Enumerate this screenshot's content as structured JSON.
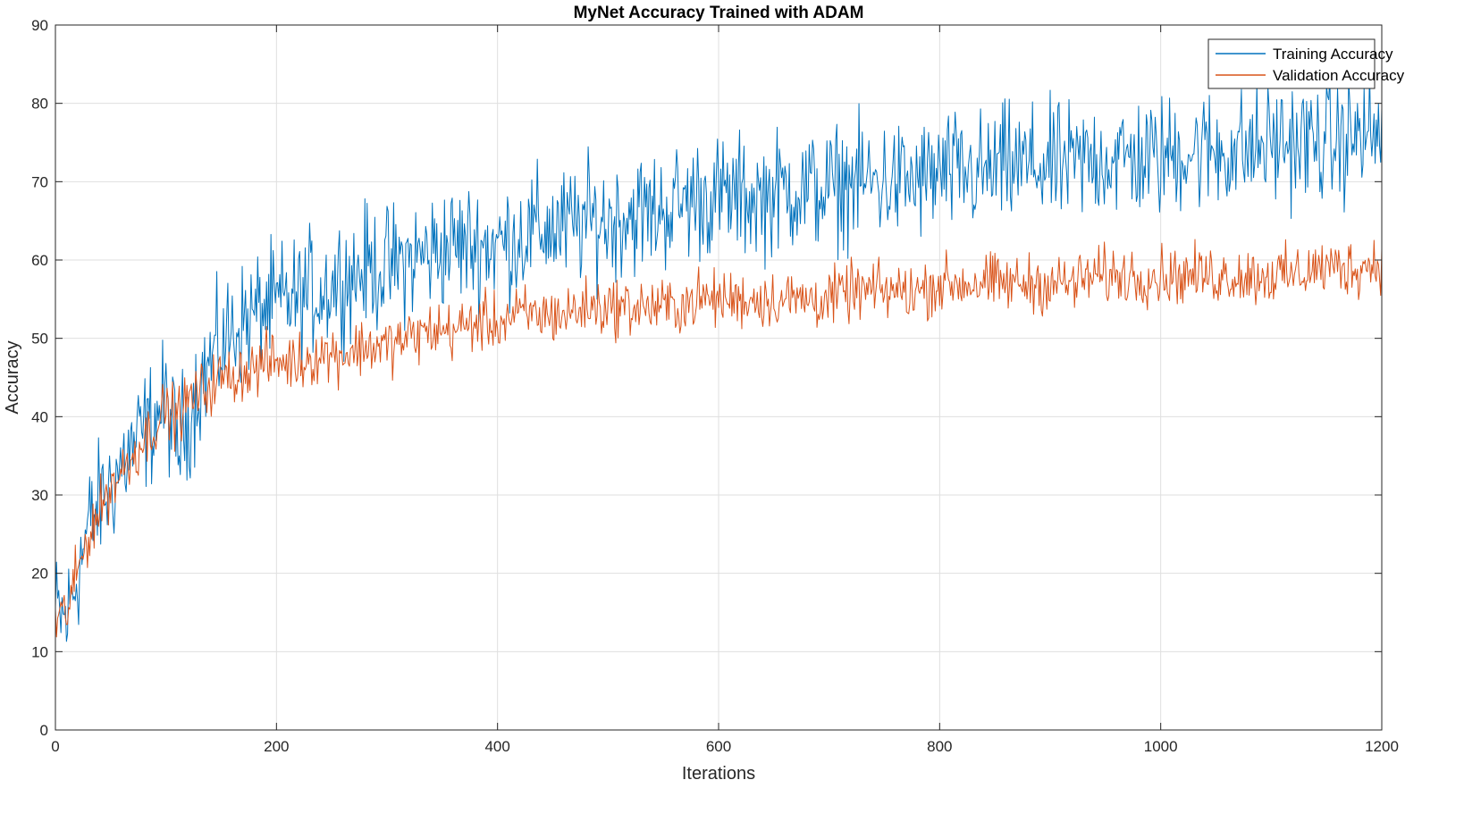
{
  "chart_data": {
    "type": "line",
    "title": "MyNet Accuracy Trained with ADAM",
    "xlabel": "Iterations",
    "ylabel": "Accuracy",
    "xlim": [
      0,
      1200
    ],
    "ylim": [
      0,
      90
    ],
    "xticks": [
      0,
      200,
      400,
      600,
      800,
      1000,
      1200
    ],
    "yticks": [
      0,
      10,
      20,
      30,
      40,
      50,
      60,
      70,
      80,
      90
    ],
    "grid": true,
    "legend_position": "top-right",
    "series": [
      {
        "name": "Training Accuracy",
        "color": "#0072BD",
        "x": [
          0,
          10,
          20,
          30,
          40,
          50,
          60,
          70,
          80,
          90,
          100,
          110,
          120,
          130,
          140,
          150,
          160,
          170,
          180,
          190,
          200,
          210,
          220,
          230,
          240,
          250,
          260,
          270,
          280,
          290,
          300,
          320,
          340,
          360,
          380,
          400,
          420,
          440,
          460,
          480,
          500,
          520,
          540,
          560,
          580,
          600,
          620,
          640,
          660,
          680,
          700,
          720,
          740,
          760,
          780,
          800,
          820,
          840,
          860,
          880,
          900,
          920,
          940,
          960,
          980,
          1000,
          1020,
          1040,
          1060,
          1080,
          1100,
          1120,
          1140,
          1160,
          1180,
          1200
        ],
        "y": [
          15,
          14,
          20,
          26,
          29,
          31,
          34,
          36,
          38,
          40,
          42,
          36,
          40,
          44,
          47,
          49,
          51,
          52,
          53,
          54,
          54,
          55,
          55,
          56,
          56,
          57,
          58,
          58,
          59,
          59,
          59,
          60,
          61,
          62,
          62,
          62,
          63,
          64,
          64,
          65,
          65,
          66,
          66,
          67,
          68,
          68,
          68,
          68,
          69,
          69,
          69,
          70,
          70,
          70,
          70,
          71,
          71,
          71,
          72,
          72,
          72,
          72,
          73,
          73,
          73,
          73,
          74,
          74,
          74,
          74,
          75,
          75,
          75,
          75,
          76,
          76
        ],
        "noise": 5.5
      },
      {
        "name": "Validation Accuracy",
        "color": "#D95319",
        "x": [
          0,
          10,
          20,
          30,
          40,
          50,
          60,
          70,
          80,
          90,
          100,
          110,
          120,
          130,
          140,
          150,
          160,
          170,
          180,
          190,
          200,
          220,
          240,
          260,
          280,
          300,
          320,
          340,
          360,
          380,
          400,
          420,
          440,
          460,
          480,
          500,
          520,
          540,
          560,
          580,
          600,
          620,
          640,
          660,
          680,
          700,
          720,
          740,
          760,
          780,
          800,
          820,
          840,
          860,
          880,
          900,
          920,
          940,
          960,
          980,
          1000,
          1020,
          1040,
          1060,
          1080,
          1100,
          1120,
          1140,
          1160,
          1180,
          1200
        ],
        "y": [
          14,
          15,
          20,
          25,
          28,
          31,
          33,
          35,
          37,
          39,
          41,
          40,
          42,
          43,
          44,
          45,
          45,
          46,
          46,
          47,
          47,
          47,
          48,
          48,
          49,
          49,
          50,
          51,
          51,
          52,
          52,
          53,
          53,
          53,
          54,
          54,
          54,
          54,
          54,
          55,
          55,
          55,
          55,
          55,
          55,
          55,
          56,
          56,
          56,
          56,
          57,
          57,
          57,
          57,
          57,
          57,
          57,
          58,
          58,
          58,
          58,
          58,
          58,
          58,
          58,
          58,
          58,
          59,
          59,
          59,
          60
        ],
        "noise": 2.6
      }
    ]
  }
}
